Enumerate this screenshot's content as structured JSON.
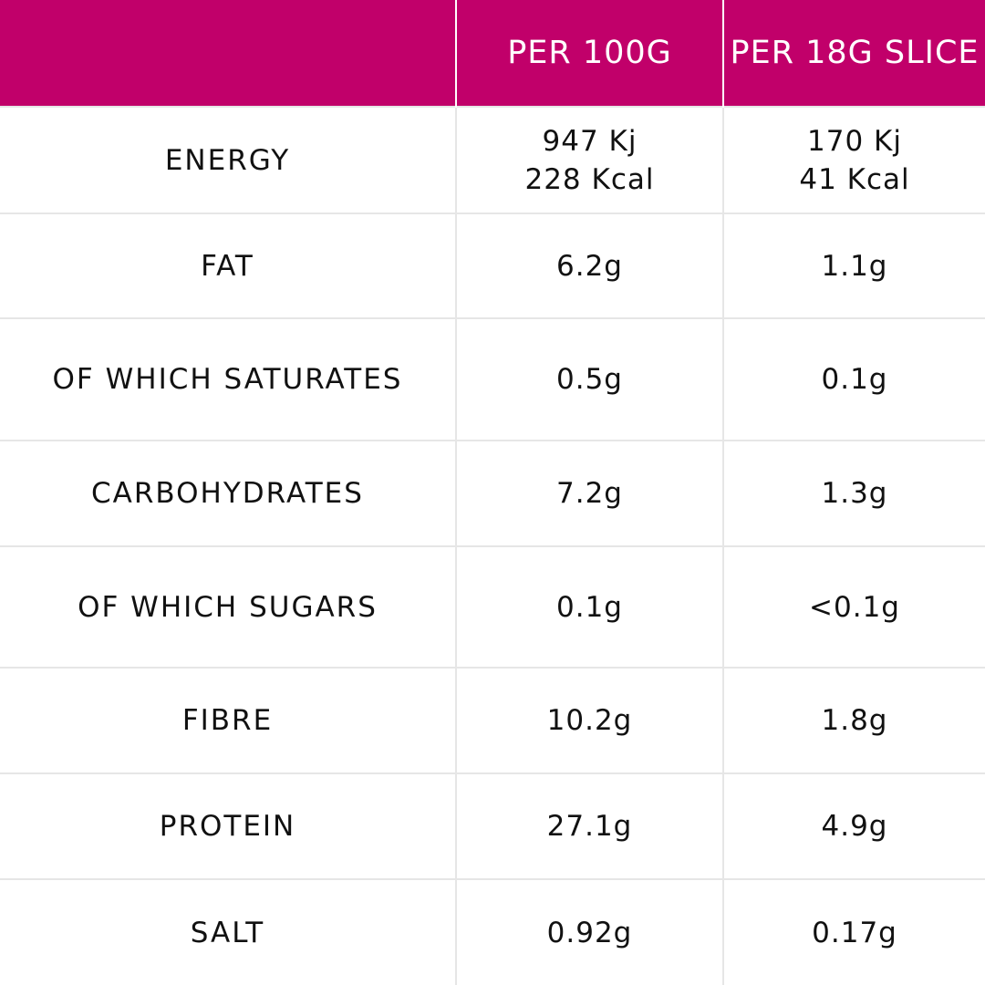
{
  "table": {
    "header": {
      "label": "",
      "per_100g": "PER 100G",
      "per_slice": "PER 18G SLICE"
    },
    "rows": [
      {
        "label": "ENERGY",
        "per_100g": [
          "947 Kj",
          "228 Kcal"
        ],
        "per_slice": [
          "170 Kj",
          "41 Kcal"
        ]
      },
      {
        "label": "FAT",
        "per_100g": "6.2g",
        "per_slice": "1.1g"
      },
      {
        "label": "OF WHICH SATURATES",
        "per_100g": "0.5g",
        "per_slice": "0.1g"
      },
      {
        "label": "CARBOHYDRATES",
        "per_100g": "7.2g",
        "per_slice": "1.3g"
      },
      {
        "label": "OF WHICH SUGARS",
        "per_100g": "0.1g",
        "per_slice": "<0.1g"
      },
      {
        "label": "FIBRE",
        "per_100g": "10.2g",
        "per_slice": "1.8g"
      },
      {
        "label": "PROTEIN",
        "per_100g": "27.1g",
        "per_slice": "4.9g"
      },
      {
        "label": "SALT",
        "per_100g": "0.92g",
        "per_slice": "0.17g"
      }
    ]
  },
  "colors": {
    "header_background": "#c1006a",
    "header_text": "#ffffff",
    "body_text": "#111111",
    "grid_lines": "#e6e6e6"
  }
}
